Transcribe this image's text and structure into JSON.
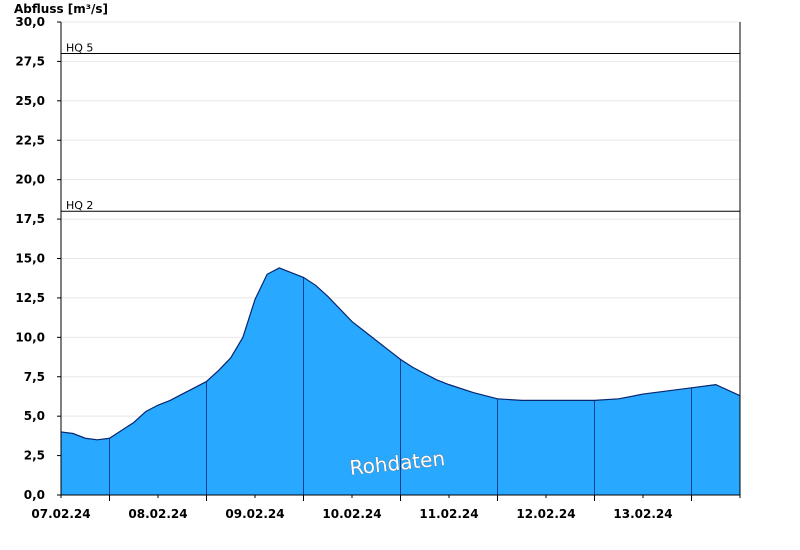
{
  "chart_data": {
    "type": "area",
    "ylabel": "Abfluss [m³/s]",
    "ylim": [
      0,
      30
    ],
    "yticks": [
      "0,0",
      "2,5",
      "5,0",
      "7,5",
      "10,0",
      "12,5",
      "15,0",
      "17,5",
      "20,0",
      "22,5",
      "25,0",
      "27,5",
      "30,0"
    ],
    "xlim": [
      "2024-02-06T12:00",
      "2024-02-13T12:00"
    ],
    "xtick_labels": [
      "07.02.24",
      "08.02.24",
      "09.02.24",
      "10.02.24",
      "11.02.24",
      "12.02.24",
      "13.02.24"
    ],
    "grid": true,
    "reference_lines": [
      {
        "label": "HQ 2",
        "value": 18.0
      },
      {
        "label": "HQ 5",
        "value": 28.0
      }
    ],
    "watermark": "Rohdaten",
    "series": [
      {
        "x": [
          "2024-02-06T12:00",
          "2024-02-06T15:00",
          "2024-02-06T18:00",
          "2024-02-06T21:00",
          "2024-02-07T00:00",
          "2024-02-07T03:00",
          "2024-02-07T06:00",
          "2024-02-07T09:00",
          "2024-02-07T12:00",
          "2024-02-07T15:00",
          "2024-02-07T18:00",
          "2024-02-07T21:00",
          "2024-02-08T00:00",
          "2024-02-08T03:00",
          "2024-02-08T06:00",
          "2024-02-08T09:00",
          "2024-02-08T12:00",
          "2024-02-08T15:00",
          "2024-02-08T18:00",
          "2024-02-08T21:00",
          "2024-02-09T00:00",
          "2024-02-09T03:00",
          "2024-02-09T06:00",
          "2024-02-09T09:00",
          "2024-02-09T12:00",
          "2024-02-09T15:00",
          "2024-02-09T18:00",
          "2024-02-09T21:00",
          "2024-02-10T00:00",
          "2024-02-10T03:00",
          "2024-02-10T06:00",
          "2024-02-10T09:00",
          "2024-02-10T12:00",
          "2024-02-10T18:00",
          "2024-02-11T00:00",
          "2024-02-11T06:00",
          "2024-02-11T12:00",
          "2024-02-11T18:00",
          "2024-02-12T00:00",
          "2024-02-12T06:00",
          "2024-02-12T12:00",
          "2024-02-12T18:00",
          "2024-02-13T00:00",
          "2024-02-13T06:00",
          "2024-02-13T12:00"
        ],
        "values": [
          4.0,
          3.9,
          3.6,
          3.5,
          3.6,
          4.1,
          4.6,
          5.3,
          5.7,
          6.0,
          6.4,
          6.8,
          7.2,
          7.9,
          8.7,
          10.0,
          12.4,
          14.0,
          14.4,
          14.1,
          13.8,
          13.3,
          12.6,
          11.8,
          11.0,
          10.4,
          9.8,
          9.2,
          8.6,
          8.1,
          7.7,
          7.3,
          7.0,
          6.5,
          6.1,
          6.0,
          6.0,
          6.0,
          6.0,
          6.1,
          6.4,
          6.6,
          6.8,
          7.0,
          6.3
        ]
      }
    ]
  },
  "colors": {
    "area_fill": "#29a8ff",
    "area_line": "#06276e",
    "axis": "#000000",
    "grid": "#e8e8e8"
  }
}
